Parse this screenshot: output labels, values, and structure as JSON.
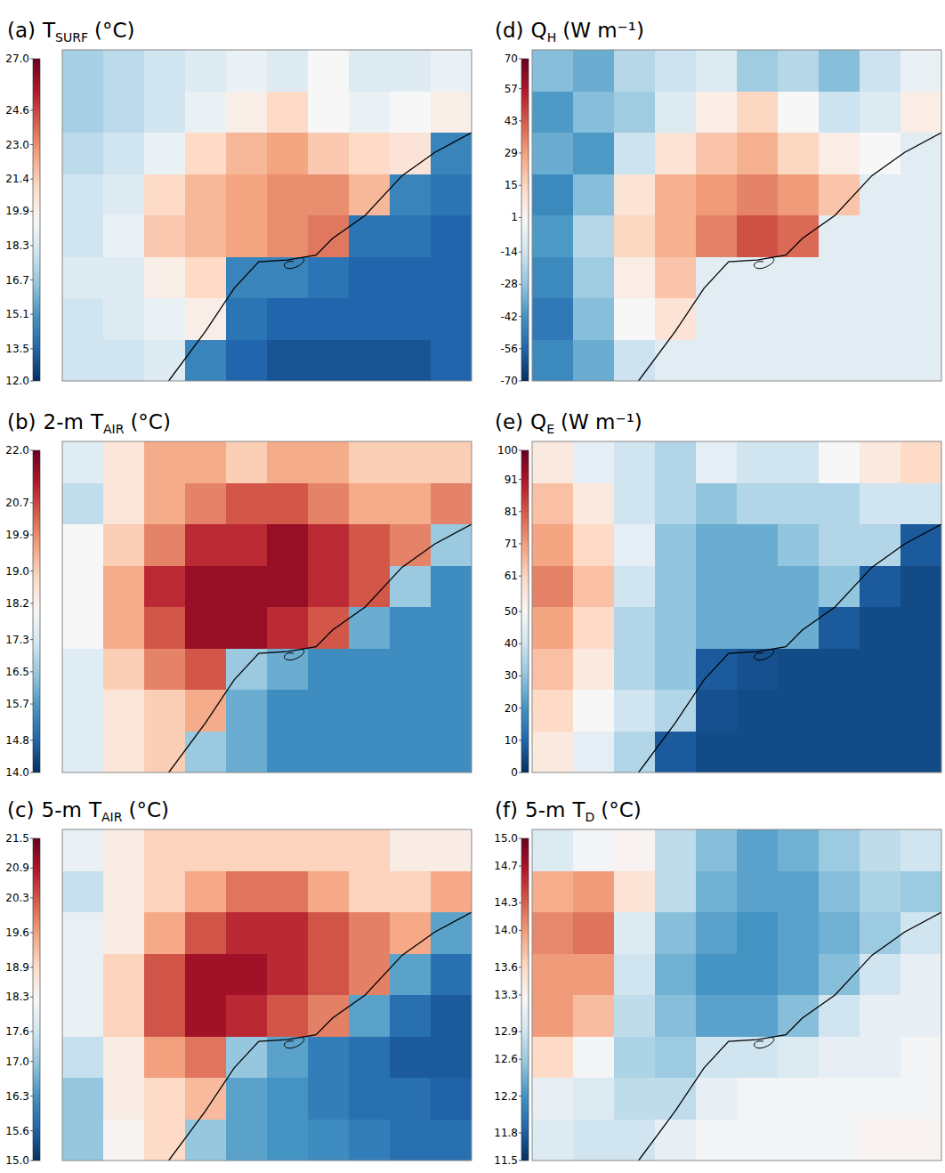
{
  "chart_data": [
    {
      "type": "heatmap",
      "label": "(a)",
      "title": {
        "symbol": "T",
        "sub": "SURF",
        "unit": "(°C)"
      },
      "colorbar_range": [
        12,
        27
      ],
      "colorbar_ticks": [
        {
          "value": 12,
          "label": "12.0"
        },
        13.5,
        15.1,
        16.7,
        18.3,
        19.9,
        21.4,
        {
          "value": 23,
          "label": "23.0"
        },
        24.6,
        {
          "value": 27,
          "label": "27.0"
        }
      ],
      "cells": [
        [
          17,
          17.5,
          18,
          18.5,
          19,
          18.5,
          19.5,
          18.5,
          18.5,
          19
        ],
        [
          17,
          17.5,
          18,
          19,
          20,
          21,
          19.5,
          19,
          19.5,
          20
        ],
        [
          17.5,
          18,
          19,
          21,
          22,
          22.5,
          21.5,
          21,
          20.5,
          14.5
        ],
        [
          18,
          18.5,
          21,
          22,
          22.5,
          23,
          23,
          22,
          14.5,
          14
        ],
        [
          18,
          19,
          21.5,
          22,
          22.5,
          23,
          23.5,
          14,
          14,
          13.5
        ],
        [
          18.5,
          18.5,
          20,
          21,
          14.5,
          14.5,
          14,
          13.5,
          13.5,
          13.5
        ],
        [
          18,
          18.5,
          19,
          20,
          14,
          13.5,
          13.5,
          13.5,
          13.5,
          13.5
        ],
        [
          18,
          18,
          18.5,
          14.5,
          13.5,
          13,
          13,
          13,
          13,
          13.5
        ]
      ]
    },
    {
      "type": "heatmap",
      "label": "(b)",
      "title": {
        "prefix": "2-m",
        "symbol": "T",
        "sub": "AIR",
        "unit": "(°C)"
      },
      "colorbar_range": [
        14,
        22
      ],
      "colorbar_ticks": [
        {
          "value": 14,
          "label": "14.0"
        },
        14.8,
        15.7,
        16.5,
        17.3,
        18.2,
        {
          "value": 19,
          "label": "19.0"
        },
        19.9,
        20.7,
        {
          "value": 22,
          "label": "22.0"
        }
      ],
      "cells": [
        [
          17.5,
          18.5,
          19.5,
          19.5,
          19,
          19.5,
          19.5,
          19,
          19,
          19
        ],
        [
          17,
          18.5,
          19.5,
          20,
          20.5,
          20.5,
          20,
          19.5,
          19.5,
          20
        ],
        [
          18,
          19,
          20,
          21,
          21,
          21.5,
          21,
          20.5,
          20,
          16.5
        ],
        [
          18,
          19.5,
          21,
          21.5,
          21.5,
          21.5,
          21,
          20.5,
          16.5,
          15.5
        ],
        [
          18,
          19.5,
          20.5,
          21.5,
          21.5,
          21,
          20.5,
          16,
          15.5,
          15.5
        ],
        [
          17.5,
          19,
          20,
          20.5,
          16.5,
          16,
          15.5,
          15.5,
          15.5,
          15.5
        ],
        [
          17.5,
          18.5,
          19,
          19.5,
          16,
          15.5,
          15.5,
          15.5,
          15.5,
          15.5
        ],
        [
          17.5,
          18.5,
          19,
          16.5,
          16,
          15.5,
          15.5,
          15.5,
          15.5,
          15.5
        ]
      ]
    },
    {
      "type": "heatmap",
      "label": "(c)",
      "title": {
        "prefix": "5-m",
        "symbol": "T",
        "sub": "AIR",
        "unit": "(°C)"
      },
      "colorbar_range": [
        15,
        21.5
      ],
      "colorbar_ticks": [
        {
          "value": 15,
          "label": "15.0"
        },
        15.6,
        16.3,
        {
          "value": 17,
          "label": "17.0"
        },
        17.6,
        18.3,
        18.9,
        19.6,
        20.3,
        20.9,
        21.5
      ],
      "cells": [
        [
          18,
          18.5,
          19,
          19,
          19,
          19,
          19,
          19,
          18.5,
          18.5
        ],
        [
          17.5,
          18.5,
          19,
          19.5,
          20,
          20,
          19.5,
          19,
          19,
          19.5
        ],
        [
          18,
          18.5,
          19.5,
          20.3,
          20.7,
          20.7,
          20.3,
          19.9,
          19.5,
          16.5
        ],
        [
          18,
          19,
          20.3,
          21,
          21,
          20.7,
          20.3,
          19.9,
          16.5,
          15.8
        ],
        [
          18,
          19,
          20.3,
          21,
          20.7,
          20.3,
          19.9,
          16.5,
          15.8,
          15.5
        ],
        [
          17.5,
          18.5,
          19.6,
          20,
          17,
          16.5,
          16,
          15.8,
          15.5,
          15.5
        ],
        [
          17,
          18.5,
          18.9,
          19.3,
          16.5,
          16.3,
          16,
          15.8,
          15.8,
          15.6
        ],
        [
          17,
          18.3,
          18.9,
          17,
          16.5,
          16.3,
          16.2,
          16,
          15.8,
          15.8
        ]
      ]
    },
    {
      "type": "heatmap",
      "label": "(d)",
      "title": {
        "symbol": "Q",
        "sub": "H",
        "unit": "(W m⁻¹)"
      },
      "colorbar_range": [
        -70,
        70
      ],
      "colorbar_ticks": [
        -70,
        -56,
        -42,
        -28,
        -14,
        1,
        15,
        29,
        43,
        57,
        70
      ],
      "cells": [
        [
          -30,
          -35,
          -20,
          -15,
          -10,
          -25,
          -20,
          -30,
          -15,
          -5
        ],
        [
          -40,
          -30,
          -25,
          -10,
          5,
          15,
          0,
          -15,
          -10,
          5
        ],
        [
          -35,
          -40,
          -15,
          10,
          20,
          25,
          15,
          5,
          0,
          -8
        ],
        [
          -45,
          -30,
          10,
          25,
          30,
          35,
          30,
          20,
          -8,
          -8
        ],
        [
          -40,
          -20,
          15,
          25,
          35,
          45,
          40,
          -8,
          -8,
          -8
        ],
        [
          -45,
          -25,
          5,
          20,
          -8,
          -8,
          -8,
          -8,
          -8,
          -8
        ],
        [
          -50,
          -30,
          0,
          10,
          -8,
          -8,
          -8,
          -8,
          -8,
          -8
        ],
        [
          -45,
          -35,
          -15,
          -8,
          -8,
          -8,
          -8,
          -8,
          -8,
          -8
        ]
      ]
    },
    {
      "type": "heatmap",
      "label": "(e)",
      "title": {
        "symbol": "Q",
        "sub": "E",
        "unit": "(W m⁻¹)"
      },
      "colorbar_range": [
        0,
        100
      ],
      "colorbar_ticks": [
        0,
        10,
        20,
        30,
        40,
        50,
        61,
        71,
        81,
        91,
        100
      ],
      "cells": [
        [
          55,
          45,
          40,
          35,
          45,
          40,
          40,
          50,
          55,
          60
        ],
        [
          65,
          55,
          40,
          35,
          30,
          35,
          35,
          35,
          40,
          40
        ],
        [
          70,
          60,
          45,
          30,
          25,
          25,
          30,
          35,
          35,
          8
        ],
        [
          75,
          65,
          40,
          30,
          25,
          25,
          25,
          30,
          8,
          5
        ],
        [
          70,
          60,
          35,
          30,
          25,
          25,
          25,
          8,
          5,
          5
        ],
        [
          65,
          55,
          35,
          30,
          8,
          6,
          5,
          5,
          5,
          5
        ],
        [
          60,
          50,
          40,
          35,
          6,
          5,
          5,
          5,
          5,
          5
        ],
        [
          55,
          45,
          35,
          8,
          5,
          5,
          5,
          5,
          5,
          5
        ]
      ]
    },
    {
      "type": "heatmap",
      "label": "(f)",
      "title": {
        "prefix": "5-m",
        "symbol": "T",
        "sub": "D",
        "unit": "(°C)"
      },
      "colorbar_range": [
        11.5,
        15
      ],
      "colorbar_ticks": [
        11.5,
        11.8,
        12.2,
        12.6,
        12.9,
        13.3,
        13.6,
        {
          "value": 14,
          "label": "14.0"
        },
        14.3,
        14.7,
        {
          "value": 15,
          "label": "15.0"
        }
      ],
      "cells": [
        [
          13,
          13.2,
          13.3,
          12.8,
          12.5,
          12.3,
          12.4,
          12.6,
          12.8,
          12.9
        ],
        [
          13.9,
          14,
          13.5,
          12.8,
          12.4,
          12.3,
          12.3,
          12.5,
          12.7,
          12.6
        ],
        [
          14.1,
          14.2,
          13,
          12.5,
          12.3,
          12.2,
          12.3,
          12.4,
          12.6,
          12.9
        ],
        [
          14,
          14,
          12.9,
          12.4,
          12.2,
          12.2,
          12.3,
          12.5,
          12.9,
          13.1
        ],
        [
          14,
          13.8,
          12.8,
          12.5,
          12.3,
          12.3,
          12.5,
          12.9,
          13.1,
          13.1
        ],
        [
          13.6,
          13.2,
          12.7,
          12.6,
          12.9,
          12.9,
          13,
          13.1,
          13.1,
          13.2
        ],
        [
          13.1,
          13,
          12.8,
          12.8,
          13.1,
          13.2,
          13.2,
          13.2,
          13.2,
          13.2
        ],
        [
          13,
          12.9,
          12.9,
          13.1,
          13.2,
          13.2,
          13.2,
          13.2,
          13.3,
          13.3
        ]
      ]
    }
  ]
}
